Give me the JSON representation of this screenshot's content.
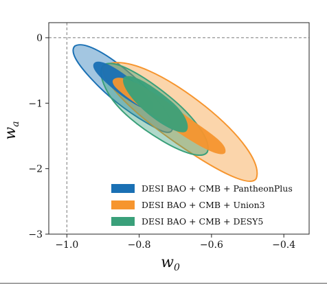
{
  "chart_data": {
    "type": "contour",
    "xlabel": "w",
    "xlabel_sub": "0",
    "ylabel": "w",
    "ylabel_sub": "a",
    "xlim": [
      -1.05,
      -0.33
    ],
    "ylim": [
      -3.0,
      0.23
    ],
    "xticks": [
      {
        "value": -1.0,
        "label": "−1.0"
      },
      {
        "value": -0.8,
        "label": "−0.8"
      },
      {
        "value": -0.6,
        "label": "−0.6"
      },
      {
        "value": -0.4,
        "label": "−0.4"
      }
    ],
    "yticks": [
      {
        "value": 0,
        "label": "0"
      },
      {
        "value": -1,
        "label": "−1"
      },
      {
        "value": -2,
        "label": "−2"
      },
      {
        "value": -3,
        "label": "−3"
      }
    ],
    "reference_lines": {
      "w0": -1.0,
      "wa": 0.0
    },
    "legend_position": "lower-right",
    "series": [
      {
        "name": "DESI BAO + CMB + PantheonPlus",
        "color": "#1a70b4",
        "center": [
          -0.82,
          -0.75
        ],
        "contours": [
          {
            "level": "95%",
            "w0_range": [
              -0.975,
              -0.67
            ],
            "wa_range": [
              -1.42,
              -0.12
            ]
          },
          {
            "level": "68%",
            "w0_range": [
              -0.91,
              -0.73
            ],
            "wa_range": [
              -1.14,
              -0.36
            ]
          }
        ]
      },
      {
        "name": "DESI BAO + CMB + Union3",
        "color": "#f6952e",
        "center": [
          -0.66,
          -1.25
        ],
        "contours": [
          {
            "level": "95%",
            "w0_range": [
              -0.88,
              -0.41
            ],
            "wa_range": [
              -2.2,
              -0.38
            ]
          },
          {
            "level": "68%",
            "w0_range": [
              -0.84,
              -0.51
            ],
            "wa_range": [
              -1.75,
              -0.6
            ]
          }
        ]
      },
      {
        "name": "DESI BAO + CMB + DESY5",
        "color": "#3aa07a",
        "center": [
          -0.74,
          -1.0
        ],
        "contours": [
          {
            "level": "95%",
            "w0_range": [
              -0.88,
              -0.585
            ],
            "wa_range": [
              -1.8,
              -0.41
            ]
          },
          {
            "level": "68%",
            "w0_range": [
              -0.83,
              -0.64
            ],
            "wa_range": [
              -1.47,
              -0.6
            ]
          }
        ]
      }
    ]
  }
}
